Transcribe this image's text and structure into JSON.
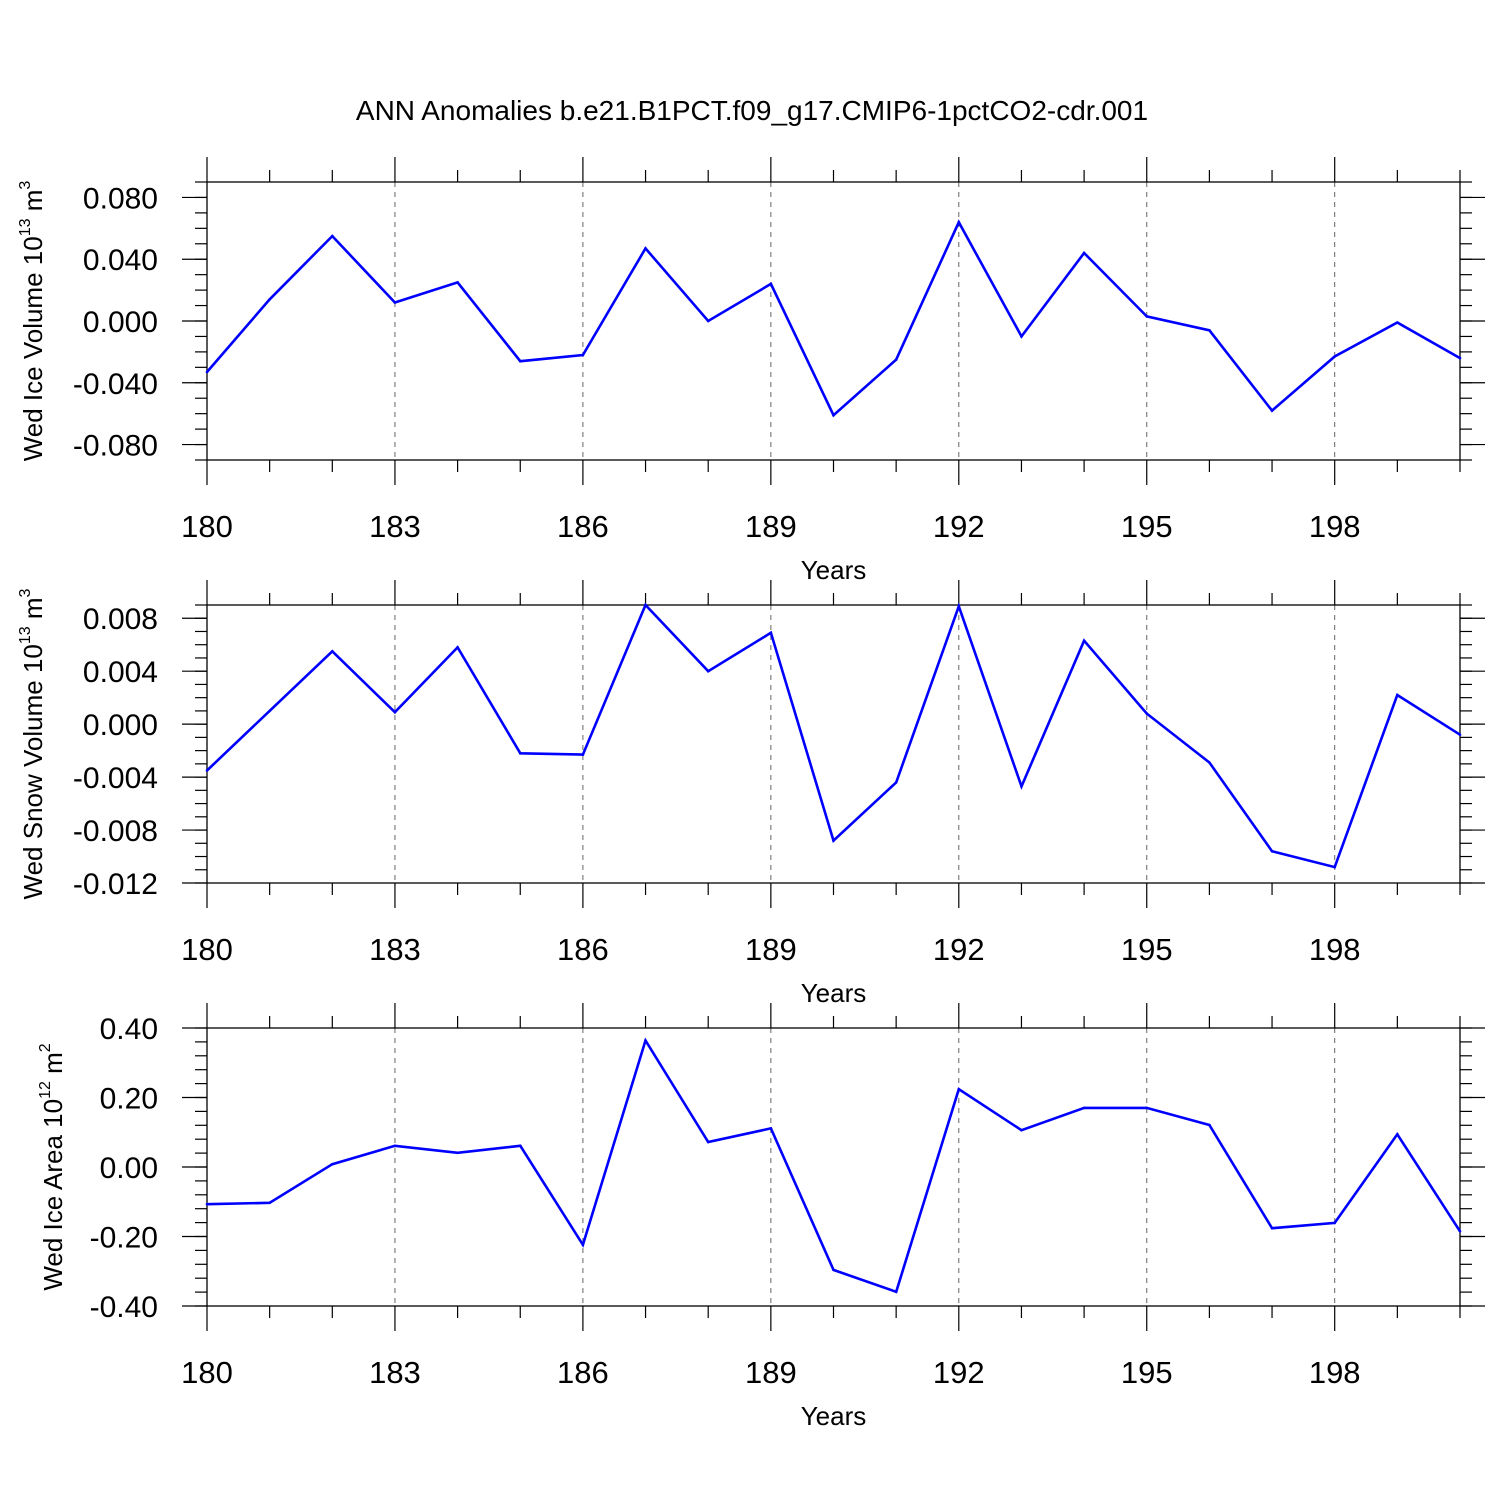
{
  "chart_data": [
    {
      "type": "line",
      "title": "ANN Anomalies b.e21.B1PCT.f09_g17.CMIP6-1pctCO2-cdr.001",
      "xlabel": "Years",
      "ylabel": {
        "text": "Wed Ice Volume 10",
        "sup": "13",
        "unit": " m",
        "unit_sup": "3"
      },
      "xlim": [
        180,
        200
      ],
      "ylim": [
        -0.09,
        0.09
      ],
      "x_ticks": [
        "180",
        "183",
        "186",
        "189",
        "192",
        "195",
        "198"
      ],
      "y_ticks": [
        "0.080",
        "0.040",
        "0.000",
        "-0.040",
        "-0.080"
      ],
      "y_tick_values": [
        0.08,
        0.04,
        0.0,
        -0.04,
        -0.08
      ],
      "y_minor_step": 0.01,
      "grid": "dashed vertical at labeled x ticks",
      "series": [
        {
          "color": "#0000ff",
          "x": [
            180,
            181,
            182,
            183,
            184,
            185,
            186,
            187,
            188,
            189,
            190,
            191,
            192,
            193,
            194,
            195,
            196,
            197,
            198,
            199,
            200
          ],
          "values": [
            -0.033,
            0.014,
            0.055,
            0.012,
            0.025,
            -0.026,
            -0.022,
            0.047,
            0.0,
            0.024,
            -0.061,
            -0.025,
            0.064,
            -0.01,
            0.044,
            0.003,
            -0.006,
            -0.058,
            -0.023,
            -0.001,
            -0.024
          ]
        }
      ]
    },
    {
      "type": "line",
      "xlabel": "Years",
      "ylabel": {
        "text": "Wed Snow Volume 10",
        "sup": "13",
        "unit": " m",
        "unit_sup": "3"
      },
      "xlim": [
        180,
        200
      ],
      "ylim": [
        -0.012,
        0.009
      ],
      "x_ticks": [
        "180",
        "183",
        "186",
        "189",
        "192",
        "195",
        "198"
      ],
      "y_ticks": [
        "0.008",
        "0.004",
        "0.000",
        "-0.004",
        "-0.008",
        "-0.012"
      ],
      "y_tick_values": [
        0.008,
        0.004,
        0.0,
        -0.004,
        -0.008,
        -0.012
      ],
      "y_minor_step": 0.001,
      "grid": "dashed vertical at labeled x ticks",
      "series": [
        {
          "color": "#0000ff",
          "x": [
            180,
            181,
            182,
            183,
            184,
            185,
            186,
            187,
            188,
            189,
            190,
            191,
            192,
            193,
            194,
            195,
            196,
            197,
            198,
            199,
            200
          ],
          "values": [
            -0.0035,
            0.001,
            0.0055,
            0.0009,
            0.0058,
            -0.0022,
            -0.0023,
            0.009,
            0.004,
            0.0069,
            -0.0088,
            -0.0044,
            0.0089,
            -0.0047,
            0.0063,
            0.0008,
            -0.0029,
            -0.0096,
            -0.0108,
            0.0022,
            -0.0008
          ]
        }
      ]
    },
    {
      "type": "line",
      "xlabel": "Years",
      "ylabel": {
        "text": "Wed Ice Area 10",
        "sup": "12",
        "unit": " m",
        "unit_sup": "2"
      },
      "xlim": [
        180,
        200
      ],
      "ylim": [
        -0.4,
        0.4
      ],
      "x_ticks": [
        "180",
        "183",
        "186",
        "189",
        "192",
        "195",
        "198"
      ],
      "y_ticks": [
        "0.40",
        "0.20",
        "0.00",
        "-0.20",
        "-0.40"
      ],
      "y_tick_values": [
        0.4,
        0.2,
        0.0,
        -0.2,
        -0.4
      ],
      "y_minor_step": 0.04,
      "grid": "dashed vertical at labeled x ticks",
      "series": [
        {
          "color": "#0000ff",
          "x": [
            180,
            181,
            182,
            183,
            184,
            185,
            186,
            187,
            188,
            189,
            190,
            191,
            192,
            193,
            194,
            195,
            196,
            197,
            198,
            199,
            200
          ],
          "values": [
            -0.107,
            -0.103,
            0.008,
            0.061,
            0.041,
            0.061,
            -0.224,
            0.364,
            0.072,
            0.111,
            -0.296,
            -0.359,
            0.224,
            0.106,
            0.17,
            0.17,
            0.121,
            -0.176,
            -0.161,
            0.094,
            -0.185
          ]
        }
      ]
    }
  ]
}
